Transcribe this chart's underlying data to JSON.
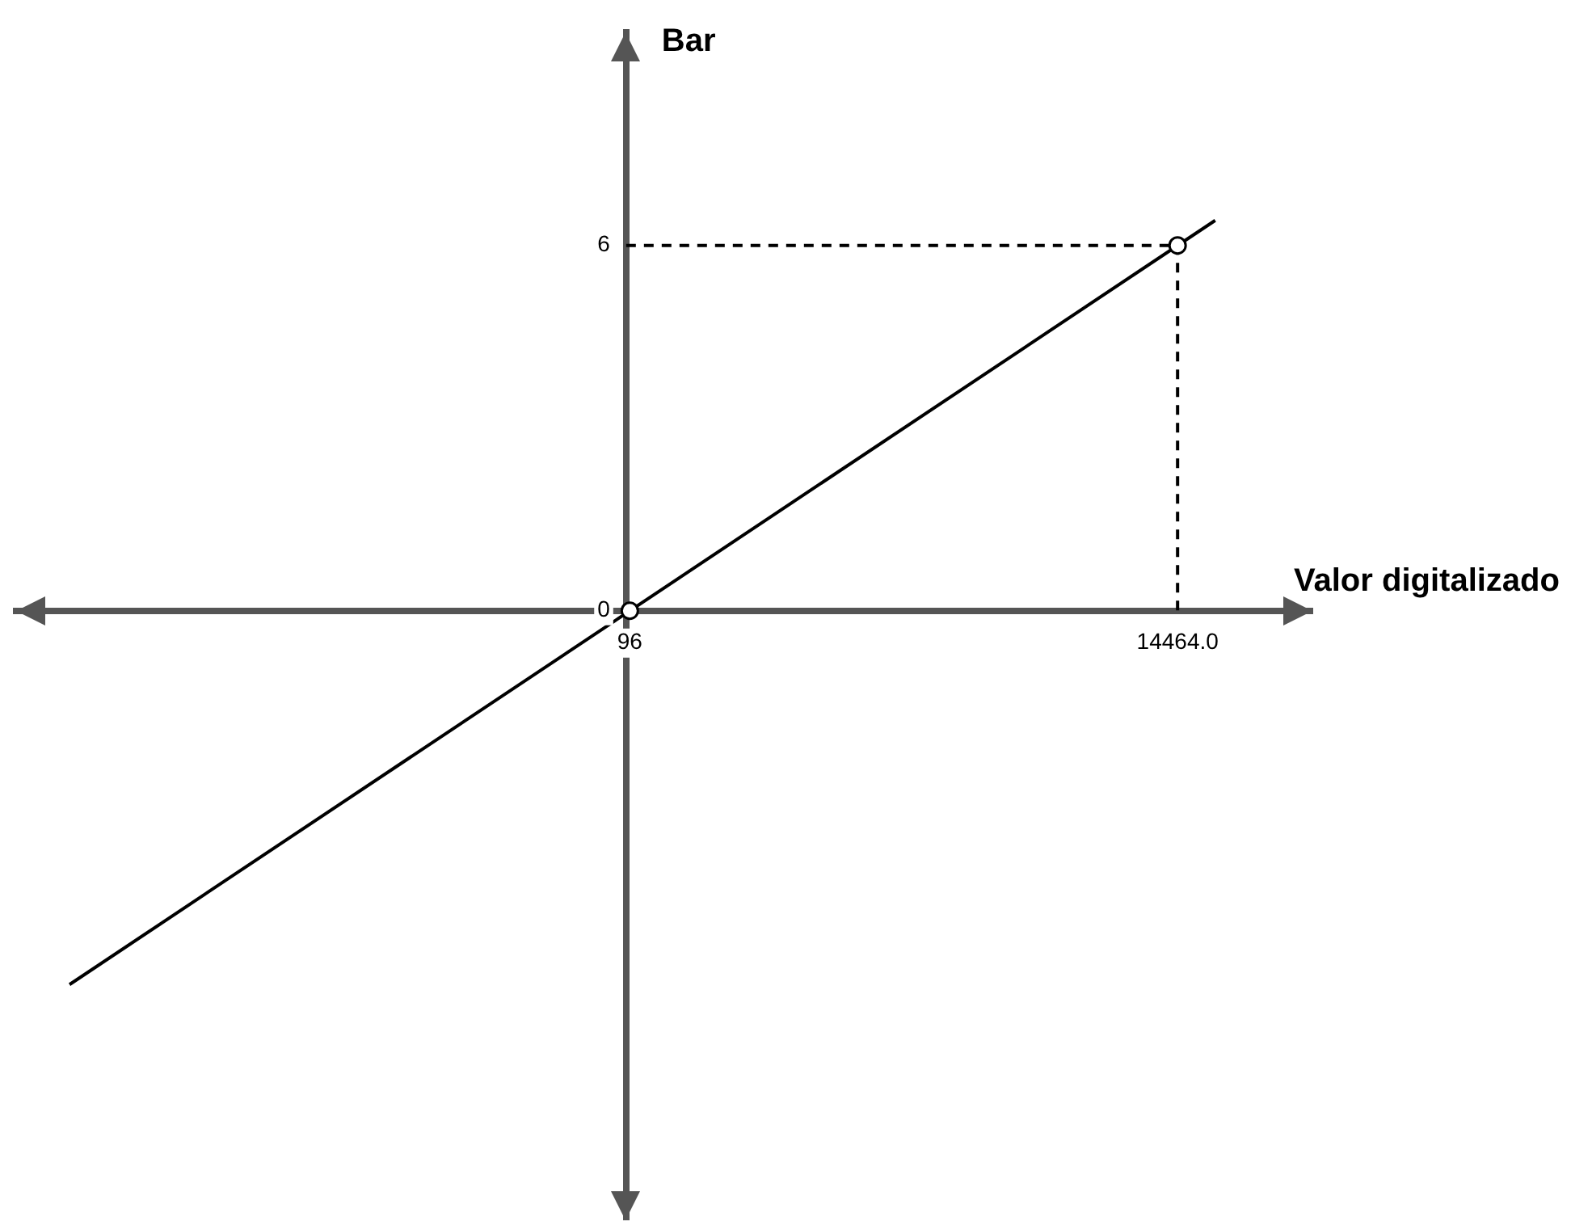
{
  "chart_data": {
    "type": "line",
    "xlabel": "Valor digitalizado",
    "ylabel": "Bar",
    "xlim": [
      -16000,
      18000
    ],
    "ylim": [
      -10,
      9.5
    ],
    "xticks": [
      96,
      {
        "value": 14464,
        "label": "14464.0"
      }
    ],
    "yticks": [
      0,
      6
    ],
    "series": [
      {
        "type": "line",
        "x": [
          -14600,
          15450
        ],
        "values": [
          -6.14,
          6.41
        ],
        "color": "#000000",
        "marker": "none"
      },
      {
        "type": "line",
        "x": [
          0,
          14464,
          14464
        ],
        "values": [
          6,
          6,
          0
        ],
        "color": "#000000",
        "line_style": "dashed",
        "marker": "none"
      },
      {
        "type": "scatter",
        "x": [
          96,
          14464
        ],
        "values": [
          0,
          6
        ],
        "color": "#000000",
        "marker": "circle"
      }
    ]
  }
}
